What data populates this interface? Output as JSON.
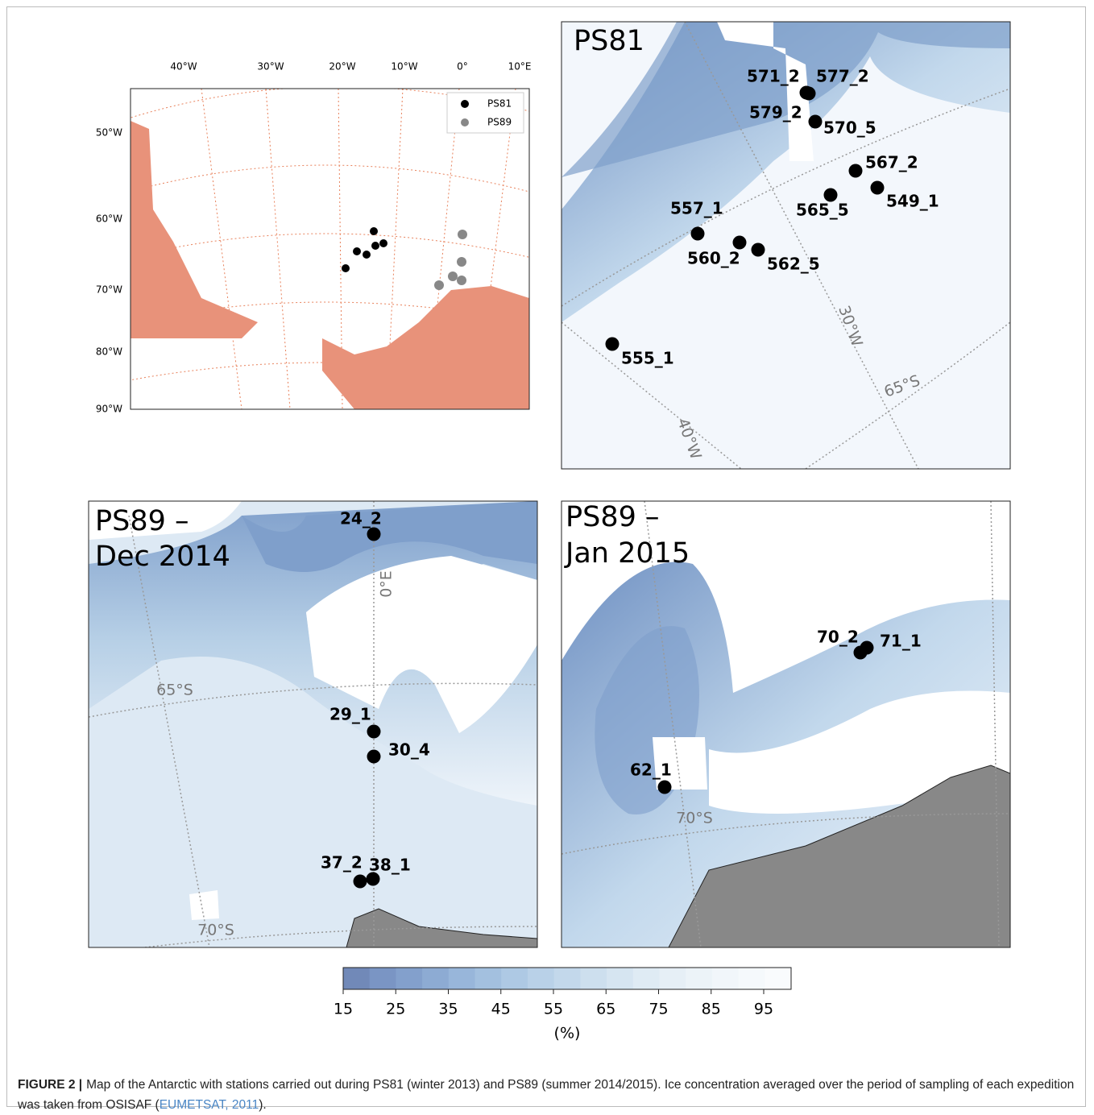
{
  "figure": {
    "panels": [
      {
        "lon_labels": [
          "40°W",
          "30°W",
          "20°W",
          "10°W",
          "0°",
          "10°E"
        ],
        "lat_labels": [
          "50°W",
          "60°W",
          "70°W",
          "80°W",
          "90°W"
        ],
        "legend": [
          "PS81",
          "PS89"
        ]
      },
      {
        "title_lines": [
          "PS81"
        ],
        "stations": [
          "571_2",
          "577_2",
          "579_2",
          "570_5",
          "567_2",
          "565_5",
          "549_1",
          "557_1",
          "560_2",
          "562_5",
          "555_1"
        ],
        "grid_labels": [
          "30°W",
          "65°S",
          "40°W"
        ]
      },
      {
        "title_lines": [
          "PS89 –",
          "Dec 2014"
        ],
        "stations": [
          "24_2",
          "29_1",
          "30_4",
          "37_2",
          "38_1"
        ],
        "grid_labels": [
          "65°S",
          "70°S",
          "0°E"
        ]
      },
      {
        "title_lines": [
          "PS89 –",
          "Jan 2015"
        ],
        "stations": [
          "70_2",
          "71_1",
          "62_1"
        ],
        "grid_labels": [
          "70°S"
        ]
      }
    ],
    "colorbar": {
      "ticks": [
        15,
        25,
        35,
        45,
        55,
        65,
        75,
        85,
        95
      ],
      "label": "(%)"
    },
    "caption": {
      "label": "FIGURE 2 |",
      "text": "Map of the Antarctic with stations carried out during PS81 (winter 2013) and PS89 (summer 2014/2015). Ice concentration averaged over the period of sampling of each expedition was taken from OSISAF (",
      "link": "EUMETSAT, 2011",
      "end": ")."
    }
  }
}
